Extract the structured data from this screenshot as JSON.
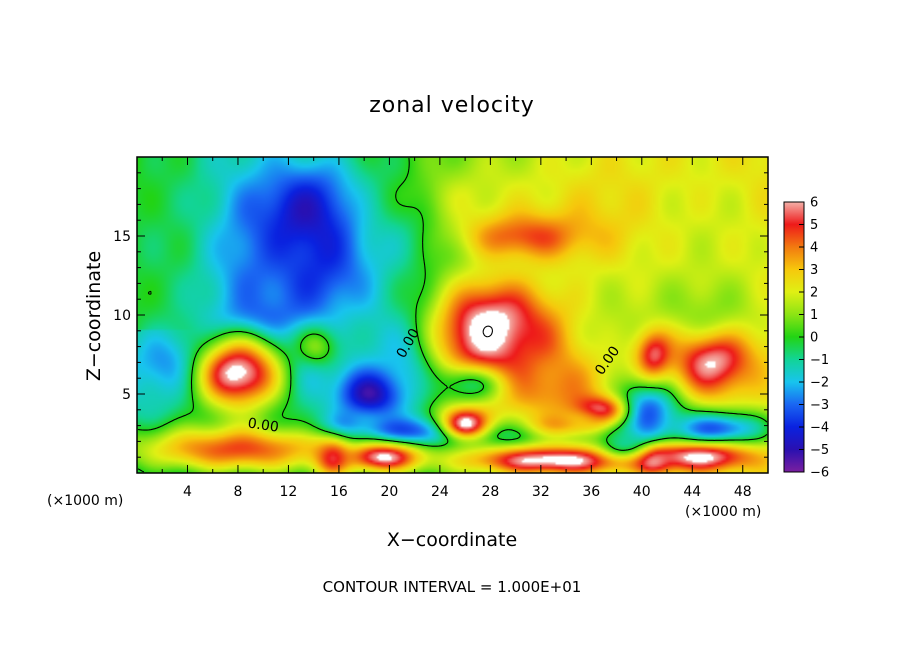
{
  "chart_data": {
    "type": "heatmap",
    "title": "zonal velocity",
    "xlabel": "X−coordinate",
    "ylabel": "Z−coordinate",
    "x_unit_left": "(×1000 m)",
    "x_unit_right": "(×1000 m)",
    "footnote": "CONTOUR INTERVAL = 1.000E+01",
    "xlim": [
      0,
      50
    ],
    "ylim": [
      0,
      20
    ],
    "x_ticks": [
      4,
      8,
      12,
      16,
      20,
      24,
      28,
      32,
      36,
      40,
      44,
      48
    ],
    "x_tick_labels": [
      "4",
      "8",
      "12",
      "16",
      "20",
      "24",
      "28",
      "32",
      "36",
      "40",
      "44",
      "48"
    ],
    "y_ticks": [
      5,
      10,
      15
    ],
    "y_tick_labels": [
      "5",
      "10",
      "15"
    ],
    "colorbar": {
      "min": -6,
      "max": 6,
      "ticks": [
        6,
        5,
        4,
        3,
        2,
        1,
        0,
        -1,
        -2,
        -3,
        -4,
        -5,
        -6
      ],
      "tick_labels": [
        "6",
        "5",
        "4",
        "3",
        "2",
        "1",
        "0",
        "−1",
        "−2",
        "−3",
        "−4",
        "−5",
        "−6"
      ],
      "colors": [
        {
          "v": -6,
          "c": "#7a1fa0"
        },
        {
          "v": -5,
          "c": "#2a10b0"
        },
        {
          "v": -4,
          "c": "#0a22e0"
        },
        {
          "v": -3,
          "c": "#1a66f2"
        },
        {
          "v": -2,
          "c": "#18c4ee"
        },
        {
          "v": -1,
          "c": "#12d496"
        },
        {
          "v": 0,
          "c": "#22d414"
        },
        {
          "v": 1,
          "c": "#8ce414"
        },
        {
          "v": 2,
          "c": "#e0f014"
        },
        {
          "v": 3,
          "c": "#f6c80c"
        },
        {
          "v": 4,
          "c": "#f27a10"
        },
        {
          "v": 5,
          "c": "#ee1a1a"
        },
        {
          "v": 6,
          "c": "#f4b0a8"
        }
      ]
    },
    "contour_labels": [
      {
        "text": "0.00",
        "x": 10.0,
        "y": 3.0,
        "rotate": 8
      },
      {
        "text": "0.00",
        "x": 21.5,
        "y": 8.2,
        "rotate": -60
      },
      {
        "text": "0.00",
        "x": 37.3,
        "y": 7.1,
        "rotate": -55
      }
    ],
    "field_blobs": [
      {
        "x": 2.0,
        "y": 15,
        "sx": 6,
        "sy": 7,
        "v": -0.4
      },
      {
        "x": 9.0,
        "y": 12.5,
        "sx": 3.5,
        "sy": 8,
        "v": -2.5
      },
      {
        "x": 14.5,
        "y": 13,
        "sx": 5,
        "sy": 6,
        "v": -3.8
      },
      {
        "x": 14.0,
        "y": 16.5,
        "sx": 4,
        "sy": 2.5,
        "v": -5.0
      },
      {
        "x": 21.0,
        "y": 16.5,
        "sx": 4,
        "sy": 3,
        "v": -2.0
      },
      {
        "x": 28.0,
        "y": 17.5,
        "sx": 8,
        "sy": 2.5,
        "v": 1.8
      },
      {
        "x": 38.0,
        "y": 16.5,
        "sx": 6,
        "sy": 4,
        "v": 2.8
      },
      {
        "x": 45.5,
        "y": 14.5,
        "sx": 6,
        "sy": 6,
        "v": 1.8
      },
      {
        "x": 31.0,
        "y": 15.0,
        "sx": 5,
        "sy": 1.5,
        "v": 4.6
      },
      {
        "x": 4.5,
        "y": 6.8,
        "sx": 4,
        "sy": 2,
        "v": -4.2
      },
      {
        "x": 9.5,
        "y": 9.5,
        "sx": 3,
        "sy": 1.3,
        "v": -4.0
      },
      {
        "x": 13.0,
        "y": 7.0,
        "sx": 2.5,
        "sy": 2,
        "v": -3.0
      },
      {
        "x": 17.5,
        "y": 8.5,
        "sx": 3,
        "sy": 2.5,
        "v": -1.5
      },
      {
        "x": 21.5,
        "y": 7.0,
        "sx": 2.5,
        "sy": 3,
        "v": -2.5
      },
      {
        "x": 18.5,
        "y": 5.0,
        "sx": 2.5,
        "sy": 1.5,
        "v": -5.2
      },
      {
        "x": 22.5,
        "y": 2.6,
        "sx": 9,
        "sy": 1.0,
        "v": -4.2
      },
      {
        "x": 40.0,
        "y": 4.0,
        "sx": 3,
        "sy": 2.5,
        "v": -4.5
      },
      {
        "x": 46.0,
        "y": 2.8,
        "sx": 4,
        "sy": 1.2,
        "v": -3.5
      },
      {
        "x": 16.5,
        "y": 2.4,
        "sx": 1.5,
        "sy": 1.2,
        "v": -4.2
      },
      {
        "x": 8.0,
        "y": 1.5,
        "sx": 9,
        "sy": 1.6,
        "v": 4.5
      },
      {
        "x": 8.0,
        "y": 6.3,
        "sx": 3.8,
        "sy": 2.5,
        "v": 6.5
      },
      {
        "x": 31.5,
        "y": 7.5,
        "sx": 6,
        "sy": 3.5,
        "v": 5.0
      },
      {
        "x": 28.0,
        "y": 9.0,
        "sx": 4,
        "sy": 3,
        "v": 6.8
      },
      {
        "x": 33.0,
        "y": 6.3,
        "sx": 4,
        "sy": 2.3,
        "v": 4.2
      },
      {
        "x": 36.5,
        "y": 4.0,
        "sx": 2.2,
        "sy": 1.0,
        "v": 6.3
      },
      {
        "x": 34.0,
        "y": 3.2,
        "sx": 3.5,
        "sy": 0.9,
        "v": 3.5
      },
      {
        "x": 26.0,
        "y": 3.2,
        "sx": 2.0,
        "sy": 1.2,
        "v": 6.8
      },
      {
        "x": 33.0,
        "y": 0.8,
        "sx": 7,
        "sy": 0.9,
        "v": 6.5
      },
      {
        "x": 45.5,
        "y": 7.2,
        "sx": 3.2,
        "sy": 2.2,
        "v": 6.4
      },
      {
        "x": 44.5,
        "y": 1.0,
        "sx": 4.5,
        "sy": 0.9,
        "v": 6.3
      },
      {
        "x": 41.0,
        "y": 0.8,
        "sx": 1.5,
        "sy": 0.8,
        "v": 6.0
      },
      {
        "x": 19.5,
        "y": 1.0,
        "sx": 3,
        "sy": 0.9,
        "v": 6.2
      },
      {
        "x": 15.5,
        "y": 1.0,
        "sx": 1.5,
        "sy": 1.2,
        "v": 5.0
      },
      {
        "x": 14.3,
        "y": 8.0,
        "sx": 1.8,
        "sy": 1.3,
        "v": 0.8
      },
      {
        "x": 26.0,
        "y": 5.5,
        "sx": 3,
        "sy": 1.2,
        "v": -0.6
      },
      {
        "x": 38.0,
        "y": 9.0,
        "sx": 4,
        "sy": 3,
        "v": 1.5
      },
      {
        "x": 45.0,
        "y": 10.5,
        "sx": 5,
        "sy": 2,
        "v": 1.0
      },
      {
        "x": 41.0,
        "y": 7.5,
        "sx": 1.5,
        "sy": 1.5,
        "v": 5.5
      },
      {
        "x": 38.5,
        "y": 2.0,
        "sx": 1.8,
        "sy": 1.0,
        "v": -1.0
      }
    ]
  }
}
